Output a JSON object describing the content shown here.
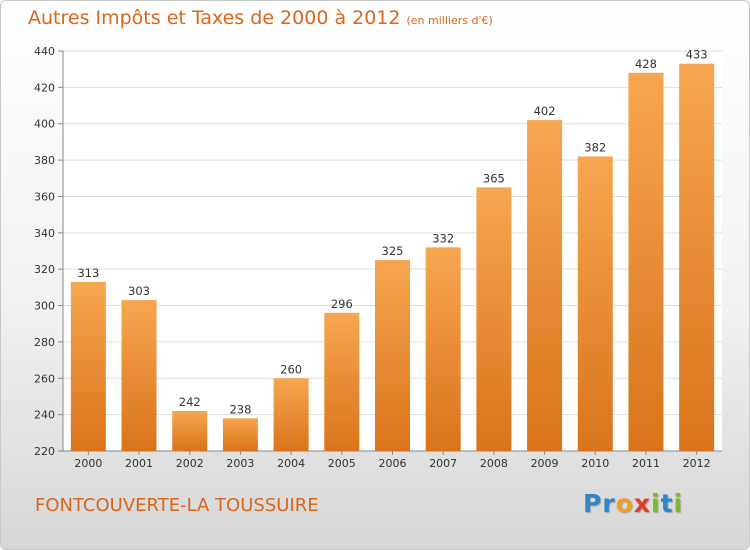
{
  "header": {
    "title": "Autres Impôts et Taxes de 2000 à 2012",
    "unit": "(en milliers d'€)"
  },
  "footer": {
    "commune": "FONTCOUVERTE-LA TOUSSUIRE",
    "logo_letters": [
      {
        "char": "P",
        "color": "#2e86c8"
      },
      {
        "char": "r",
        "color": "#2e86c8"
      },
      {
        "char": "o",
        "color": "#f0a020"
      },
      {
        "char": "x",
        "color": "#e03c2d"
      },
      {
        "char": "i",
        "color": "#7cb82f"
      },
      {
        "char": "t",
        "color": "#2e86c8"
      },
      {
        "char": "i",
        "color": "#7cb82f"
      }
    ]
  },
  "chart_data": {
    "type": "bar",
    "title": "Autres Impôts et Taxes de 2000 à 2012",
    "subtitle": "(en milliers d'€)",
    "categories": [
      "2000",
      "2001",
      "2002",
      "2003",
      "2004",
      "2005",
      "2006",
      "2007",
      "2008",
      "2009",
      "2010",
      "2011",
      "2012"
    ],
    "values": [
      313,
      303,
      242,
      238,
      260,
      296,
      325,
      332,
      365,
      402,
      382,
      428,
      433
    ],
    "ylim": [
      220,
      440
    ],
    "yticks": [
      220,
      240,
      260,
      280,
      300,
      320,
      340,
      360,
      380,
      400,
      420,
      440
    ],
    "grid": true,
    "colors": {
      "bar_light": "#f7a650",
      "bar_dark": "#d9741c",
      "grid": "#dddddd"
    }
  }
}
